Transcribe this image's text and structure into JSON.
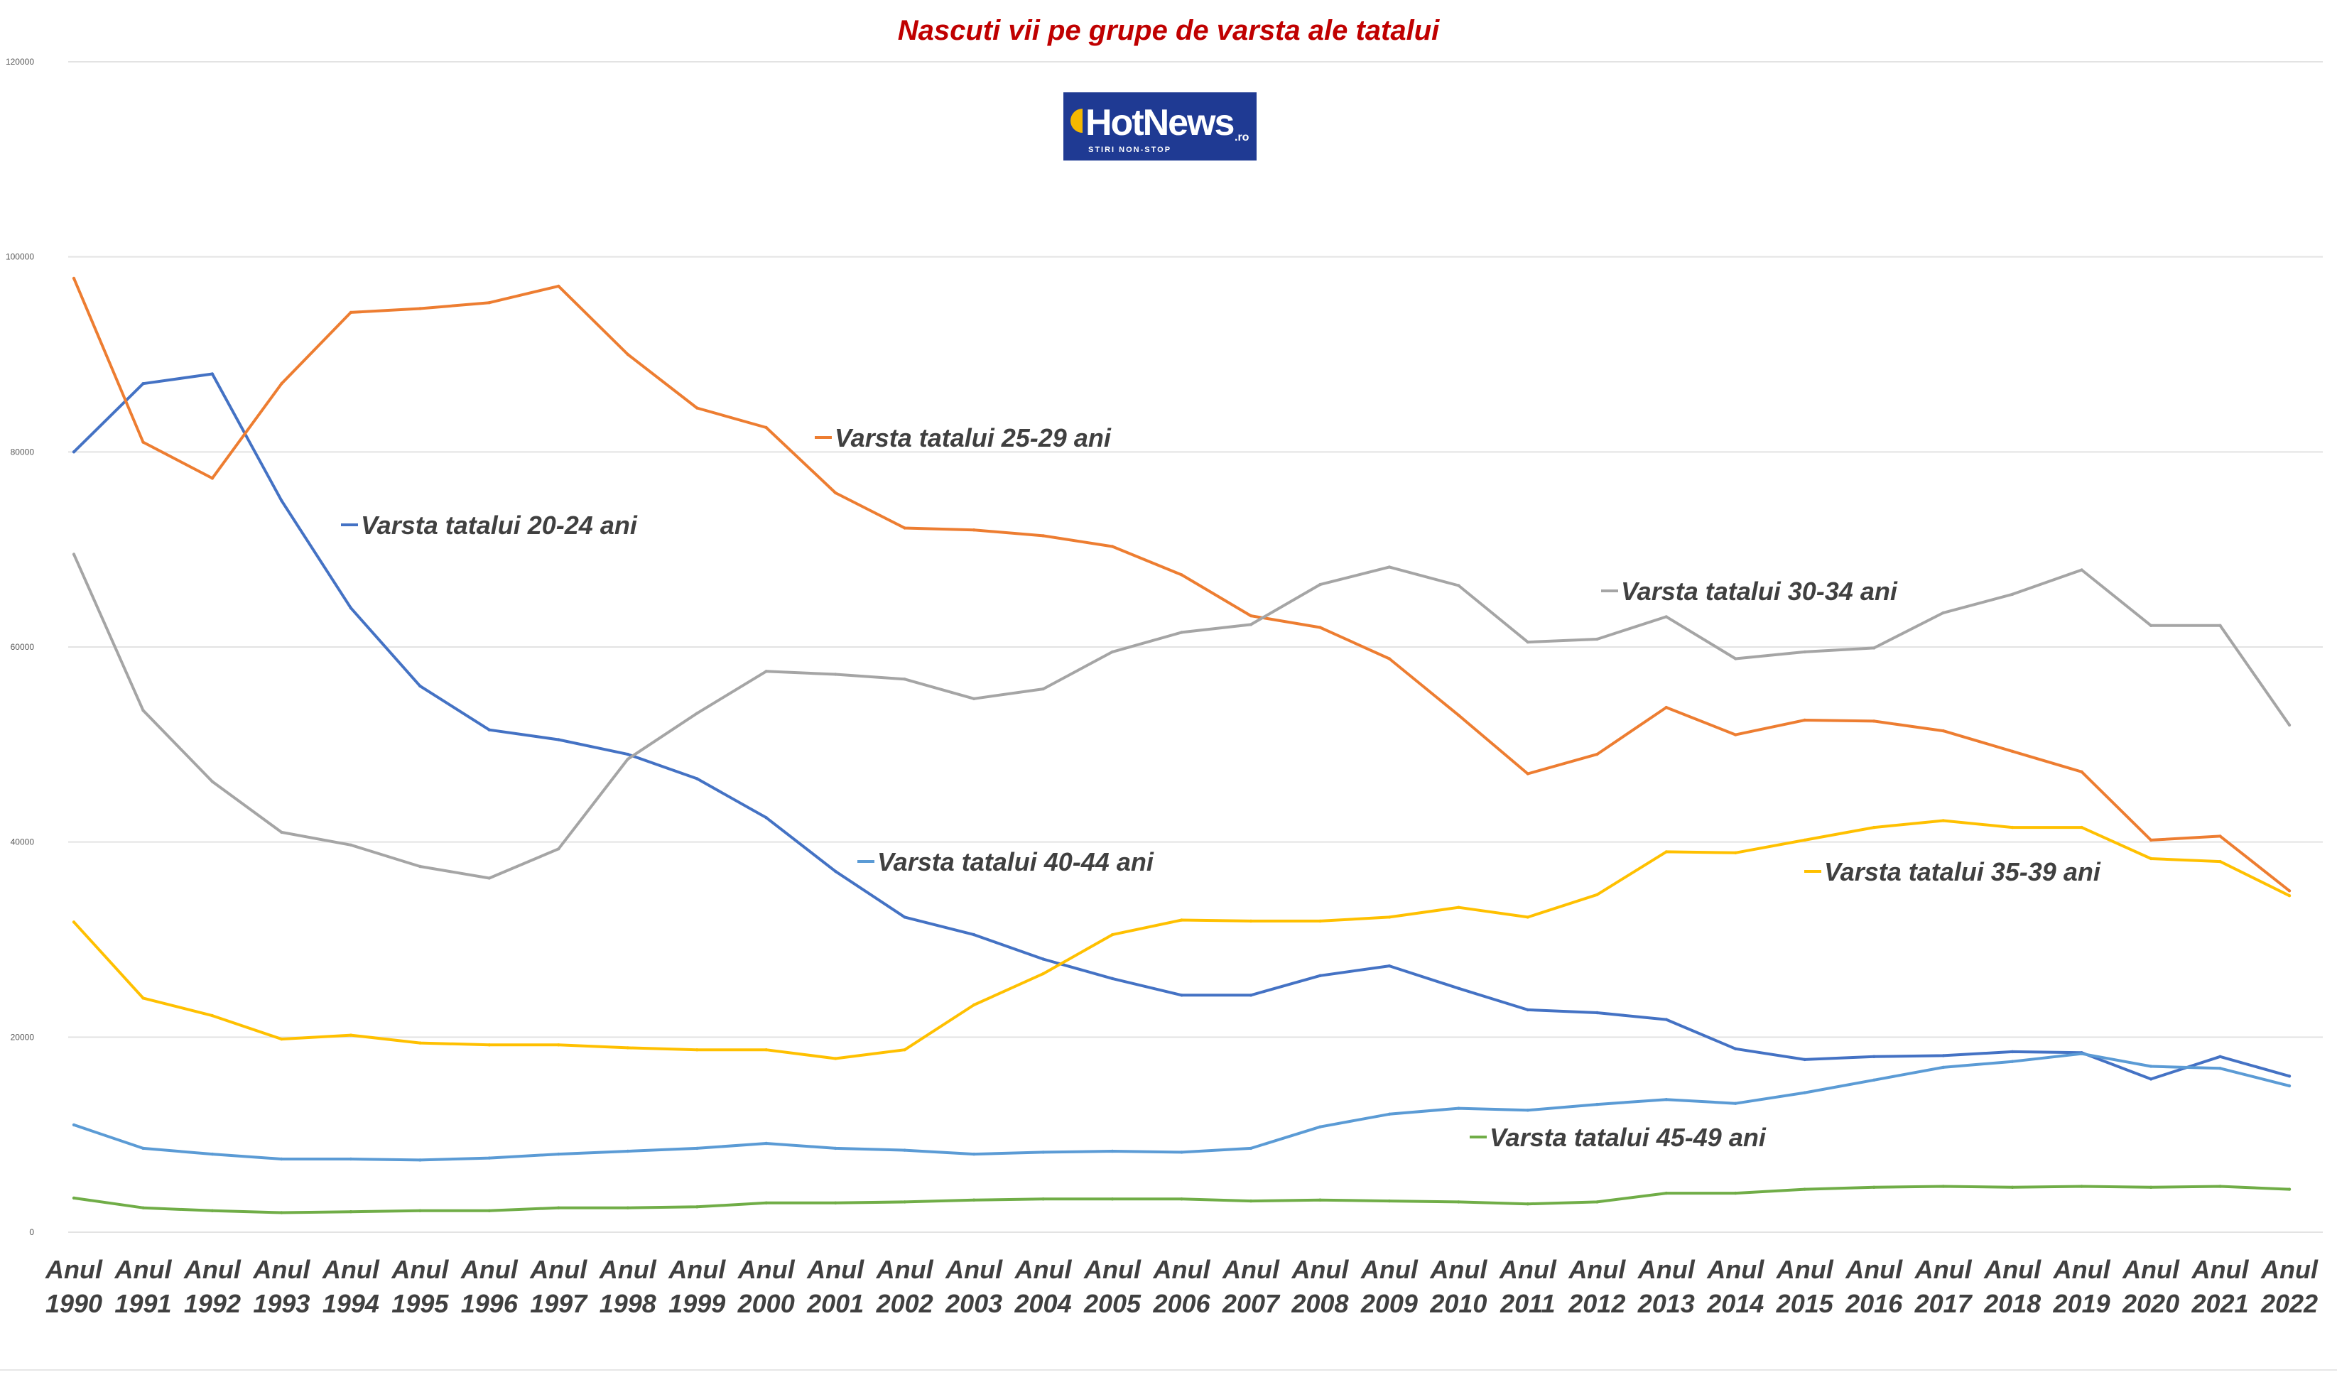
{
  "chart_data": {
    "type": "line",
    "title": "Nascuti vii pe grupe de varsta ale tatalui",
    "xlabel": "",
    "ylabel": "",
    "ylim": [
      0,
      120000
    ],
    "yticks": [
      0,
      20000,
      40000,
      60000,
      80000,
      100000,
      120000
    ],
    "ytick_labels": [
      "0",
      "20000",
      "40000",
      "60000",
      "80000",
      "100000",
      "120000"
    ],
    "grid": true,
    "legend": "inline labels",
    "categories": [
      "Anul 1990",
      "Anul 1991",
      "Anul 1992",
      "Anul 1993",
      "Anul 1994",
      "Anul 1995",
      "Anul 1996",
      "Anul 1997",
      "Anul 1998",
      "Anul 1999",
      "Anul 2000",
      "Anul 2001",
      "Anul 2002",
      "Anul 2003",
      "Anul 2004",
      "Anul 2005",
      "Anul 2006",
      "Anul 2007",
      "Anul 2008",
      "Anul 2009",
      "Anul 2010",
      "Anul 2011",
      "Anul 2012",
      "Anul 2013",
      "Anul 2014",
      "Anul 2015",
      "Anul 2016",
      "Anul 2017",
      "Anul 2018",
      "Anul 2019",
      "Anul 2020",
      "Anul 2021",
      "Anul 2022"
    ],
    "category_lines": [
      [
        "Anul",
        "1990"
      ],
      [
        "Anul",
        "1991"
      ],
      [
        "Anul",
        "1992"
      ],
      [
        "Anul",
        "1993"
      ],
      [
        "Anul",
        "1994"
      ],
      [
        "Anul",
        "1995"
      ],
      [
        "Anul",
        "1996"
      ],
      [
        "Anul",
        "1997"
      ],
      [
        "Anul",
        "1998"
      ],
      [
        "Anul",
        "1999"
      ],
      [
        "Anul",
        "2000"
      ],
      [
        "Anul",
        "2001"
      ],
      [
        "Anul",
        "2002"
      ],
      [
        "Anul",
        "2003"
      ],
      [
        "Anul",
        "2004"
      ],
      [
        "Anul",
        "2005"
      ],
      [
        "Anul",
        "2006"
      ],
      [
        "Anul",
        "2007"
      ],
      [
        "Anul",
        "2008"
      ],
      [
        "Anul",
        "2009"
      ],
      [
        "Anul",
        "2010"
      ],
      [
        "Anul",
        "2011"
      ],
      [
        "Anul",
        "2012"
      ],
      [
        "Anul",
        "2013"
      ],
      [
        "Anul",
        "2014"
      ],
      [
        "Anul",
        "2015"
      ],
      [
        "Anul",
        "2016"
      ],
      [
        "Anul",
        "2017"
      ],
      [
        "Anul",
        "2018"
      ],
      [
        "Anul",
        "2019"
      ],
      [
        "Anul",
        "2020"
      ],
      [
        "Anul",
        "2021"
      ],
      [
        "Anul",
        "2022"
      ]
    ],
    "series": [
      {
        "name": "Varsta tatalui 20-24 ani",
        "color": "#4472c4",
        "values": [
          80000,
          87000,
          88000,
          75000,
          64000,
          56000,
          51500,
          50500,
          49000,
          46500,
          42500,
          37000,
          32300,
          30500,
          28000,
          26000,
          24300,
          24300,
          26300,
          27300,
          25000,
          22800,
          22500,
          21800,
          18800,
          17700,
          18000,
          18100,
          18500,
          18400,
          15700,
          18000,
          16000
        ]
      },
      {
        "name": "Varsta tatalui 25-29 ani",
        "color": "#ed7d31",
        "values": [
          97800,
          81000,
          77300,
          87000,
          94300,
          94700,
          95300,
          97000,
          90000,
          84500,
          82500,
          75800,
          72200,
          72000,
          71400,
          70300,
          67400,
          63200,
          62000,
          58800,
          53000,
          47000,
          49000,
          53800,
          51000,
          52500,
          52400,
          51400,
          49300,
          47200,
          40200,
          40600,
          35000
        ]
      },
      {
        "name": "Varsta tatalui 30-34 ani",
        "color": "#a5a5a5",
        "values": [
          69500,
          53500,
          46200,
          41000,
          39700,
          37500,
          36300,
          39300,
          48500,
          53200,
          57500,
          57200,
          56700,
          54700,
          55700,
          59500,
          61500,
          62300,
          66400,
          68200,
          66300,
          60500,
          60800,
          63100,
          58800,
          59500,
          59900,
          63500,
          65400,
          67900,
          62200,
          62200,
          52000
        ]
      },
      {
        "name": "Varsta tatalui 35-39 ani",
        "color": "#ffc000",
        "values": [
          31800,
          24000,
          22200,
          19800,
          20200,
          19400,
          19200,
          19200,
          18900,
          18700,
          18700,
          17800,
          18700,
          23300,
          26500,
          30500,
          32000,
          31900,
          31900,
          32300,
          33300,
          32300,
          34600,
          39000,
          38900,
          40200,
          41500,
          42200,
          41500,
          41500,
          38300,
          38000,
          34500
        ]
      },
      {
        "name": "Varsta tatalui 40-44 ani",
        "color": "#5b9bd5",
        "values": [
          11000,
          8600,
          8000,
          7500,
          7500,
          7400,
          7600,
          8000,
          8300,
          8600,
          9100,
          8600,
          8400,
          8000,
          8200,
          8300,
          8200,
          8600,
          10800,
          12100,
          12700,
          12500,
          13100,
          13600,
          13200,
          14300,
          15600,
          16900,
          17500,
          18300,
          17000,
          16800,
          15000
        ]
      },
      {
        "name": "Varsta tatalui 45-49 ani",
        "color": "#70ad47",
        "values": [
          3500,
          2500,
          2200,
          2000,
          2100,
          2200,
          2200,
          2500,
          2500,
          2600,
          3000,
          3000,
          3100,
          3300,
          3400,
          3400,
          3400,
          3200,
          3300,
          3200,
          3100,
          2900,
          3100,
          4000,
          4000,
          4400,
          4600,
          4700,
          4600,
          4700,
          4600,
          4700,
          4400
        ]
      }
    ]
  },
  "logo": {
    "brand_main": "HotNews",
    "brand_suffix": ".ro",
    "tagline": "STIRI NON-STOP",
    "bg_color": "#1f3a93",
    "accent_color": "#f5b800"
  }
}
